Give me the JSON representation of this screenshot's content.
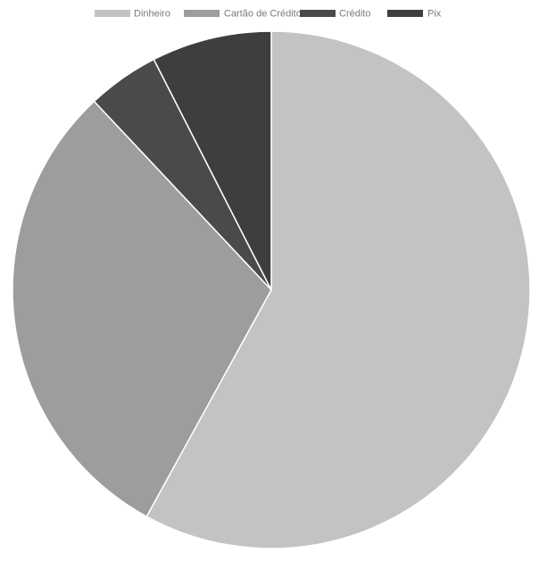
{
  "chart_data": {
    "type": "pie",
    "title": "",
    "legend_position": "top",
    "categories": [
      "Dinheiro",
      "Cartão de Crédito",
      "Crédito",
      "Pix"
    ],
    "values": [
      58,
      30,
      4.5,
      7.5
    ],
    "colors": [
      "#c3c3c3",
      "#9d9d9d",
      "#4a4a4a",
      "#3e3e3e"
    ],
    "start_angle_deg": 0,
    "direction": "clockwise"
  }
}
